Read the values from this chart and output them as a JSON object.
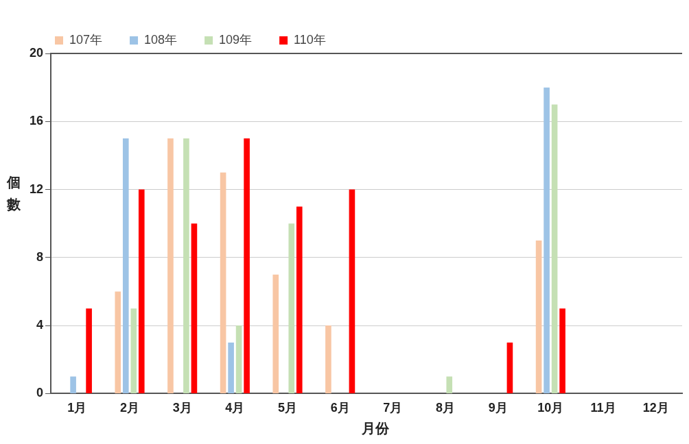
{
  "chart_data": {
    "type": "bar",
    "xlabel": "月份",
    "ylabel": "個數",
    "categories": [
      "1月",
      "2月",
      "3月",
      "4月",
      "5月",
      "6月",
      "7月",
      "8月",
      "9月",
      "10月",
      "11月",
      "12月"
    ],
    "series": [
      {
        "name": "107年",
        "color": "#f8c6a4",
        "values": [
          0,
          6,
          15,
          13,
          7,
          4,
          0,
          0,
          0,
          9,
          0,
          0
        ]
      },
      {
        "name": "108年",
        "color": "#9dc3e6",
        "values": [
          1,
          15,
          0,
          3,
          0,
          0,
          0,
          0,
          0,
          18,
          0,
          0
        ]
      },
      {
        "name": "109年",
        "color": "#c5e0b4",
        "values": [
          0,
          5,
          15,
          4,
          10,
          0,
          0,
          1,
          0,
          17,
          0,
          0
        ]
      },
      {
        "name": "110年",
        "color": "#ff0000",
        "values": [
          5,
          12,
          10,
          15,
          11,
          12,
          0,
          0,
          3,
          5,
          0,
          0
        ]
      }
    ],
    "ylim": [
      0,
      20
    ],
    "yticks": [
      0,
      4,
      8,
      12,
      16,
      20
    ],
    "grid": "y",
    "legend": "top left"
  }
}
